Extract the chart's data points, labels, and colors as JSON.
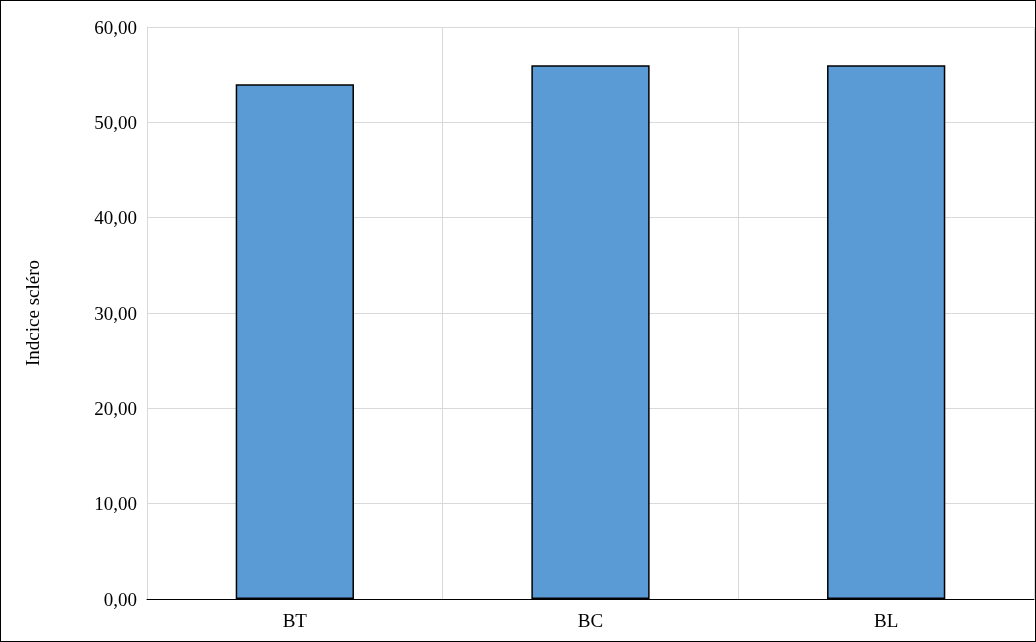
{
  "chart_data": {
    "type": "bar",
    "ylabel": "Indcice scléro",
    "categories": [
      "BT",
      "BC",
      "BL"
    ],
    "series": [
      {
        "color": "#5b9bd5",
        "values": [
          54,
          56,
          56
        ]
      }
    ],
    "ylim": [
      0,
      60
    ],
    "yticks": [
      {
        "value": 0,
        "label": "0,00"
      },
      {
        "value": 10,
        "label": "10,00"
      },
      {
        "value": 20,
        "label": "20,00"
      },
      {
        "value": 30,
        "label": "30,00"
      },
      {
        "value": 40,
        "label": "40,00"
      },
      {
        "value": 50,
        "label": "50,00"
      },
      {
        "value": 60,
        "label": "60,00"
      }
    ],
    "grid": true
  }
}
